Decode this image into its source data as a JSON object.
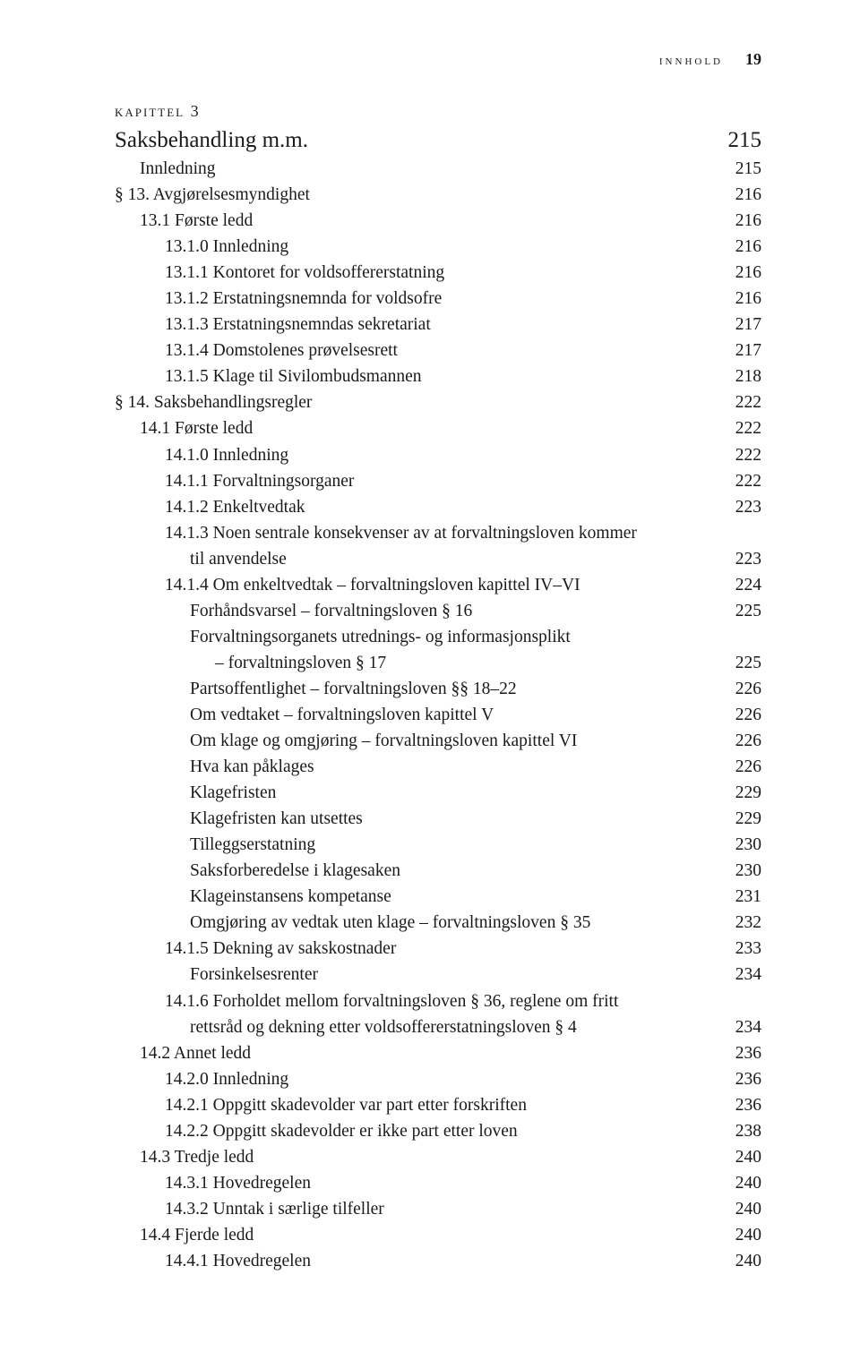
{
  "running_head": {
    "label": "innhold",
    "page": "19"
  },
  "chapter": {
    "label": "kapittel 3"
  },
  "entries": [
    {
      "cls": "toc-title",
      "ind": 0,
      "label": "Saksbehandling m.m.",
      "page": "215"
    },
    {
      "ind": 1,
      "label": "Innledning",
      "page": "215"
    },
    {
      "ind": 0,
      "label": "§ 13. Avgjørelsesmyndighet",
      "page": "216"
    },
    {
      "ind": 1,
      "label": "13.1 Første ledd",
      "page": "216"
    },
    {
      "ind": 2,
      "label": "13.1.0 Innledning",
      "page": "216"
    },
    {
      "ind": 2,
      "label": "13.1.1 Kontoret for voldsoffererstatning",
      "page": "216"
    },
    {
      "ind": 2,
      "label": "13.1.2 Erstatningsnemnda for voldsofre",
      "page": "216"
    },
    {
      "ind": 2,
      "label": "13.1.3 Erstatningsnemndas sekretariat",
      "page": "217"
    },
    {
      "ind": 2,
      "label": "13.1.4 Domstolenes prøvelsesrett",
      "page": "217"
    },
    {
      "ind": 2,
      "label": "13.1.5 Klage til Sivilombudsmannen",
      "page": "218"
    },
    {
      "ind": 0,
      "label": "§ 14. Saksbehandlingsregler",
      "page": "222"
    },
    {
      "ind": 1,
      "label": "14.1 Første ledd",
      "page": "222"
    },
    {
      "ind": 2,
      "label": "14.1.0 Innledning",
      "page": "222"
    },
    {
      "ind": 2,
      "label": "14.1.1 Forvaltningsorganer",
      "page": "222"
    },
    {
      "ind": 2,
      "label": "14.1.2 Enkeltvedtak",
      "page": "223"
    },
    {
      "ind": 2,
      "wrap": true,
      "first": "14.1.3 Noen sentrale konsekvenser av at forvaltningsloven kommer",
      "label": "til anvendelse",
      "page": "223"
    },
    {
      "ind": 2,
      "label": "14.1.4 Om enkeltvedtak – forvaltningsloven kapittel IV–VI",
      "page": "224"
    },
    {
      "ind": 3,
      "label": "Forhåndsvarsel – forvaltningsloven § 16",
      "page": "225"
    },
    {
      "ind": 3,
      "wrap": true,
      "first": "Forvaltningsorganets utrednings- og informasjonsplikt",
      "label": "– forvaltningsloven § 17",
      "page": "225"
    },
    {
      "ind": 3,
      "label": "Partsoffentlighet – forvaltningsloven §§ 18–22",
      "page": "226"
    },
    {
      "ind": 3,
      "label": "Om vedtaket – forvaltningsloven kapittel V",
      "page": "226"
    },
    {
      "ind": 3,
      "label": "Om klage og omgjøring – forvaltningsloven kapittel VI",
      "page": "226"
    },
    {
      "ind": 3,
      "label": "Hva kan påklages",
      "page": "226"
    },
    {
      "ind": 3,
      "label": "Klagefristen",
      "page": "229"
    },
    {
      "ind": 3,
      "label": "Klagefristen kan utsettes",
      "page": "229"
    },
    {
      "ind": 3,
      "label": "Tilleggserstatning",
      "page": "230"
    },
    {
      "ind": 3,
      "label": "Saksforberedelse i klagesaken",
      "page": "230"
    },
    {
      "ind": 3,
      "label": "Klageinstansens kompetanse",
      "page": "231"
    },
    {
      "ind": 3,
      "label": "Omgjøring av vedtak uten klage – forvaltningsloven § 35",
      "page": "232"
    },
    {
      "ind": 2,
      "label": "14.1.5 Dekning av sakskostnader",
      "page": "233"
    },
    {
      "ind": 3,
      "label": "Forsinkelsesrenter",
      "page": "234"
    },
    {
      "ind": 2,
      "wrap": true,
      "first": "14.1.6 Forholdet mellom forvaltningsloven § 36, reglene om fritt",
      "label": "rettsråd og dekning etter voldsoffererstatningsloven § 4",
      "page": "234"
    },
    {
      "ind": 1,
      "label": "14.2 Annet ledd",
      "page": "236"
    },
    {
      "ind": 2,
      "label": "14.2.0 Innledning",
      "page": "236"
    },
    {
      "ind": 2,
      "label": "14.2.1 Oppgitt skadevolder var part etter forskriften",
      "page": "236"
    },
    {
      "ind": 2,
      "label": "14.2.2 Oppgitt skadevolder er ikke part etter loven",
      "page": "238"
    },
    {
      "ind": 1,
      "label": "14.3 Tredje ledd",
      "page": "240"
    },
    {
      "ind": 2,
      "label": "14.3.1 Hovedregelen",
      "page": "240"
    },
    {
      "ind": 2,
      "label": "14.3.2 Unntak i særlige tilfeller",
      "page": "240"
    },
    {
      "ind": 1,
      "label": "14.4 Fjerde ledd",
      "page": "240"
    },
    {
      "ind": 2,
      "label": "14.4.1 Hovedregelen",
      "page": "240"
    }
  ]
}
